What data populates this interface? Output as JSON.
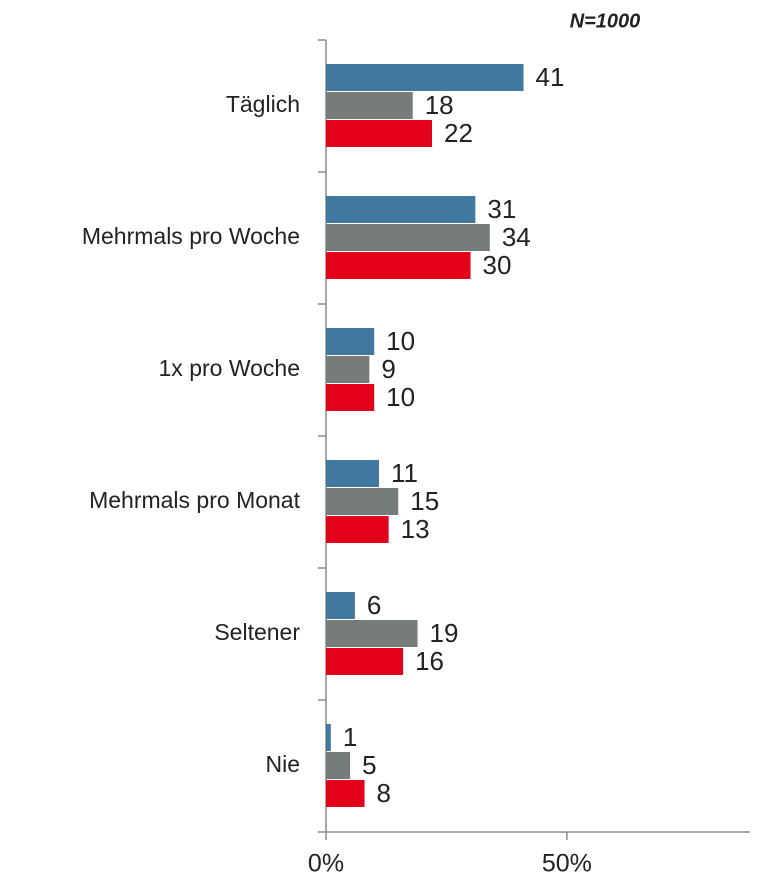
{
  "chart_data": {
    "type": "barh",
    "annotation": "N=1000",
    "categories": [
      "Täglich",
      "Mehrmals pro Woche",
      "1x pro Woche",
      "Mehrmals pro Monat",
      "Seltener",
      "Nie"
    ],
    "series": [
      {
        "color": "#41789f",
        "values": [
          41,
          31,
          10,
          11,
          6,
          1
        ]
      },
      {
        "color": "#767b7b",
        "values": [
          18,
          34,
          9,
          15,
          19,
          5
        ]
      },
      {
        "color": "#e2001a",
        "values": [
          22,
          30,
          10,
          13,
          16,
          8
        ]
      }
    ],
    "xlim": [
      0,
      88
    ],
    "xticks": [
      {
        "value": 0,
        "label": "0%"
      },
      {
        "value": 50,
        "label": "50%"
      }
    ]
  }
}
